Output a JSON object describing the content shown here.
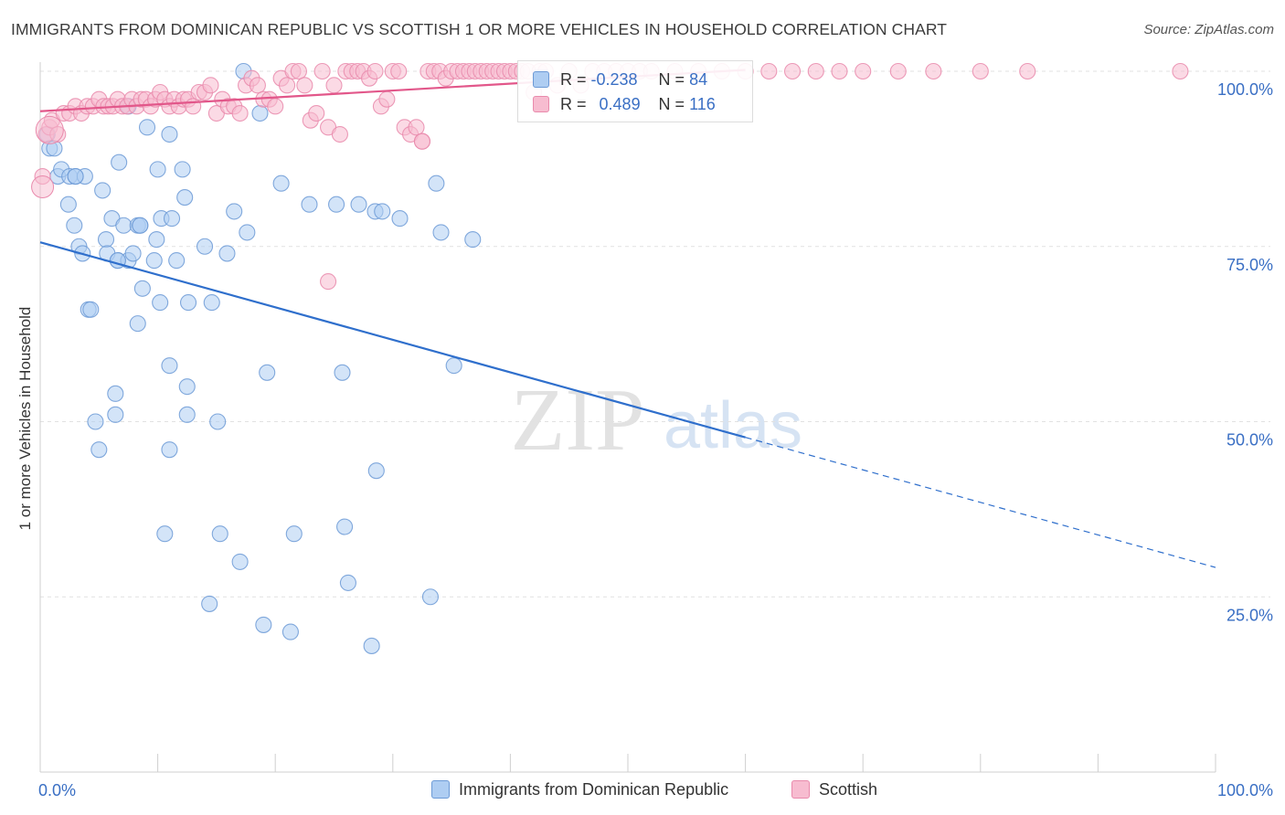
{
  "title": "IMMIGRANTS FROM DOMINICAN REPUBLIC VS SCOTTISH 1 OR MORE VEHICLES IN HOUSEHOLD CORRELATION CHART",
  "source": "Source: ZipAtlas.com",
  "watermark": {
    "zip": "ZIP",
    "atlas": "atlas"
  },
  "legend": {
    "r_label": "R =",
    "n_label": "N =",
    "rows": [
      {
        "r": "-0.238",
        "n": "84",
        "fill": "#aecdf2",
        "stroke": "#6c9ad6"
      },
      {
        "r": "0.489",
        "n": "116",
        "fill": "#f7bcd0",
        "stroke": "#e98aac"
      }
    ]
  },
  "bottom_legend": [
    "Immigrants from Dominican Republic",
    "Scottish"
  ],
  "chart_data": {
    "type": "scatter",
    "title": "IMMIGRANTS FROM DOMINICAN REPUBLIC VS SCOTTISH 1 OR MORE VEHICLES IN HOUSEHOLD CORRELATION CHART",
    "xlabel": "",
    "ylabel": "1 or more Vehicles in Household",
    "xlim": [
      0,
      100
    ],
    "ylim": [
      0,
      100
    ],
    "x_ticks": [
      "0.0%",
      "100.0%"
    ],
    "y_ticks": [
      {
        "value": 100,
        "label": "100.0%"
      },
      {
        "value": 75,
        "label": "75.0%"
      },
      {
        "value": 50,
        "label": "50.0%"
      },
      {
        "value": 25,
        "label": "25.0%"
      }
    ],
    "grid": true,
    "legend_position": "top-center",
    "series": [
      {
        "name": "Immigrants from Dominican Republic",
        "color": "#6c9ad6",
        "fill": "#aecdf2",
        "trend": {
          "x0": 0,
          "y0": 75.6,
          "x1": 100,
          "y1": 29.2,
          "solid_until": 60
        },
        "points": [
          [
            0.6,
            91
          ],
          [
            0.8,
            89
          ],
          [
            1.2,
            89
          ],
          [
            1.5,
            85
          ],
          [
            1.8,
            86
          ],
          [
            2.5,
            85
          ],
          [
            3.0,
            85
          ],
          [
            3.8,
            85
          ],
          [
            2.4,
            81
          ],
          [
            2.9,
            78
          ],
          [
            3.3,
            75
          ],
          [
            3.6,
            74
          ],
          [
            5.3,
            83
          ],
          [
            5.6,
            76
          ],
          [
            6.1,
            79
          ],
          [
            5.7,
            74
          ],
          [
            6.6,
            73
          ],
          [
            6.7,
            87
          ],
          [
            7.1,
            78
          ],
          [
            7.5,
            73
          ],
          [
            7.5,
            95
          ],
          [
            7.9,
            74
          ],
          [
            8.3,
            78
          ],
          [
            8.5,
            78
          ],
          [
            8.7,
            69
          ],
          [
            9.1,
            92
          ],
          [
            9.7,
            73
          ],
          [
            9.9,
            76
          ],
          [
            10.0,
            86
          ],
          [
            10.2,
            67
          ],
          [
            10.3,
            79
          ],
          [
            11.0,
            91
          ],
          [
            11.2,
            79
          ],
          [
            11.6,
            73
          ],
          [
            12.1,
            86
          ],
          [
            12.3,
            82
          ],
          [
            12.6,
            67
          ],
          [
            14.0,
            75
          ],
          [
            14.6,
            67
          ],
          [
            15.9,
            74
          ],
          [
            16.5,
            80
          ],
          [
            17.6,
            77
          ],
          [
            17.3,
            100
          ],
          [
            18.7,
            94
          ],
          [
            20.5,
            84
          ],
          [
            22.9,
            81
          ],
          [
            25.2,
            81
          ],
          [
            27.1,
            81
          ],
          [
            28.5,
            80
          ],
          [
            29.1,
            80
          ],
          [
            30.6,
            79
          ],
          [
            33.7,
            84
          ],
          [
            34.1,
            77
          ],
          [
            36.8,
            76
          ],
          [
            4.1,
            66
          ],
          [
            4.3,
            66
          ],
          [
            8.3,
            64
          ],
          [
            11.0,
            58
          ],
          [
            12.5,
            55
          ],
          [
            15.1,
            50
          ],
          [
            12.5,
            51
          ],
          [
            6.4,
            54
          ],
          [
            6.4,
            51
          ],
          [
            4.7,
            50
          ],
          [
            5.0,
            46
          ],
          [
            11.0,
            46
          ],
          [
            19.3,
            57
          ],
          [
            25.7,
            57
          ],
          [
            35.2,
            58
          ],
          [
            28.6,
            43
          ],
          [
            10.6,
            34
          ],
          [
            15.3,
            34
          ],
          [
            21.6,
            34
          ],
          [
            25.9,
            35
          ],
          [
            17.0,
            30
          ],
          [
            26.2,
            27
          ],
          [
            14.4,
            24
          ],
          [
            33.2,
            25
          ],
          [
            19.0,
            21
          ],
          [
            21.3,
            20
          ],
          [
            28.2,
            18
          ],
          [
            6.6,
            73
          ],
          [
            8.5,
            78
          ],
          [
            3.0,
            85
          ]
        ]
      },
      {
        "name": "Scottish",
        "color": "#e98aac",
        "fill": "#f7bcd0",
        "trend": {
          "x0": 0,
          "y0": 94.3,
          "x1": 60,
          "y1": 100.2,
          "solid_until": 60
        },
        "points": [
          [
            0.2,
            85
          ],
          [
            0.5,
            91
          ],
          [
            0.8,
            92
          ],
          [
            1.0,
            93
          ],
          [
            1.5,
            91
          ],
          [
            2.0,
            94
          ],
          [
            2.5,
            94
          ],
          [
            3.0,
            95
          ],
          [
            3.5,
            94
          ],
          [
            4.0,
            95
          ],
          [
            4.5,
            95
          ],
          [
            5.0,
            96
          ],
          [
            5.4,
            95
          ],
          [
            5.8,
            95
          ],
          [
            6.2,
            95
          ],
          [
            6.6,
            96
          ],
          [
            7.0,
            95
          ],
          [
            7.4,
            95
          ],
          [
            7.8,
            96
          ],
          [
            8.2,
            95
          ],
          [
            8.6,
            96
          ],
          [
            9.0,
            96
          ],
          [
            9.4,
            95
          ],
          [
            9.8,
            96
          ],
          [
            10.2,
            97
          ],
          [
            10.6,
            96
          ],
          [
            11.0,
            95
          ],
          [
            11.4,
            96
          ],
          [
            11.8,
            95
          ],
          [
            12.2,
            96
          ],
          [
            12.6,
            96
          ],
          [
            13.0,
            95
          ],
          [
            13.5,
            97
          ],
          [
            14.0,
            97
          ],
          [
            14.5,
            98
          ],
          [
            15.0,
            94
          ],
          [
            15.5,
            96
          ],
          [
            16.0,
            95
          ],
          [
            16.5,
            95
          ],
          [
            17.0,
            94
          ],
          [
            17.5,
            98
          ],
          [
            18.0,
            99
          ],
          [
            18.5,
            98
          ],
          [
            19.0,
            96
          ],
          [
            19.5,
            96
          ],
          [
            20.0,
            95
          ],
          [
            20.5,
            99
          ],
          [
            21.0,
            98
          ],
          [
            21.5,
            100
          ],
          [
            22.0,
            100
          ],
          [
            22.5,
            98
          ],
          [
            23.0,
            93
          ],
          [
            23.5,
            94
          ],
          [
            24.0,
            100
          ],
          [
            24.5,
            92
          ],
          [
            25.0,
            98
          ],
          [
            25.5,
            91
          ],
          [
            26.0,
            100
          ],
          [
            26.5,
            100
          ],
          [
            27.0,
            100
          ],
          [
            27.5,
            100
          ],
          [
            28.0,
            99
          ],
          [
            28.5,
            100
          ],
          [
            29.0,
            95
          ],
          [
            29.5,
            96
          ],
          [
            30.0,
            100
          ],
          [
            30.5,
            100
          ],
          [
            31.0,
            92
          ],
          [
            31.5,
            91
          ],
          [
            32.0,
            92
          ],
          [
            32.5,
            90
          ],
          [
            33.0,
            100
          ],
          [
            33.5,
            100
          ],
          [
            34.0,
            100
          ],
          [
            34.5,
            99
          ],
          [
            35.0,
            100
          ],
          [
            35.5,
            100
          ],
          [
            36.0,
            100
          ],
          [
            36.5,
            100
          ],
          [
            37.0,
            100
          ],
          [
            37.5,
            100
          ],
          [
            38.0,
            100
          ],
          [
            38.5,
            100
          ],
          [
            39.0,
            100
          ],
          [
            39.5,
            100
          ],
          [
            40.0,
            100
          ],
          [
            40.5,
            100
          ],
          [
            41.0,
            100
          ],
          [
            41.5,
            100
          ],
          [
            42.0,
            97
          ],
          [
            42.5,
            100
          ],
          [
            43.0,
            100
          ],
          [
            44.0,
            98
          ],
          [
            45.0,
            100
          ],
          [
            46.0,
            98
          ],
          [
            47.0,
            100
          ],
          [
            48.0,
            100
          ],
          [
            49.0,
            100
          ],
          [
            50.0,
            100
          ],
          [
            51.0,
            100
          ],
          [
            52.0,
            100
          ],
          [
            54.0,
            100
          ],
          [
            56.0,
            100
          ],
          [
            58.0,
            100
          ],
          [
            60.0,
            100
          ],
          [
            62.0,
            100
          ],
          [
            64.0,
            100
          ],
          [
            66.0,
            100
          ],
          [
            68.0,
            100
          ],
          [
            70.0,
            100
          ],
          [
            73.0,
            100
          ],
          [
            76.0,
            100
          ],
          [
            80.0,
            100
          ],
          [
            84.0,
            100
          ],
          [
            97.0,
            100
          ],
          [
            24.5,
            70
          ],
          [
            32.5,
            90
          ]
        ]
      }
    ]
  }
}
